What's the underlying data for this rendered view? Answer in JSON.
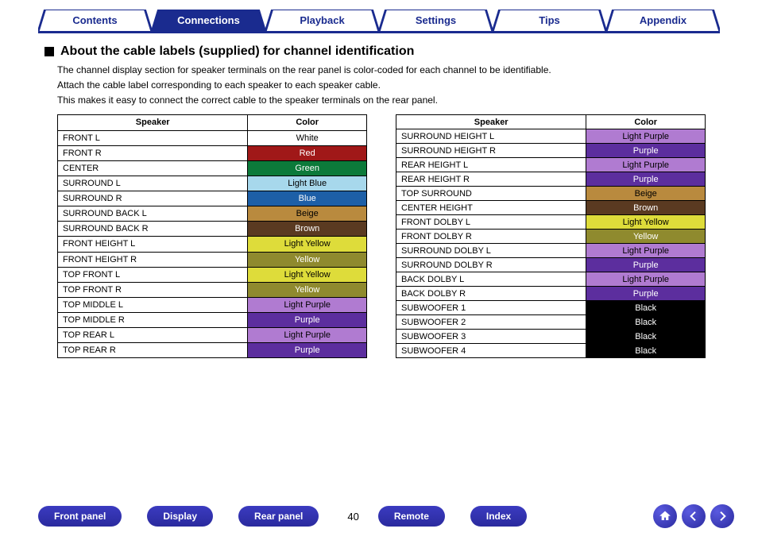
{
  "tabs": [
    {
      "label": "Contents",
      "active": false
    },
    {
      "label": "Connections",
      "active": true
    },
    {
      "label": "Playback",
      "active": false
    },
    {
      "label": "Settings",
      "active": false
    },
    {
      "label": "Tips",
      "active": false
    },
    {
      "label": "Appendix",
      "active": false
    }
  ],
  "section_title": "About the cable labels (supplied) for channel identification",
  "body_lines": [
    "The channel display section for speaker terminals on the rear panel is color-coded for each channel to be identifiable.",
    "Attach the cable label corresponding to each speaker to each speaker cable.",
    "This makes it easy to connect the correct cable to the speaker terminals on the rear panel."
  ],
  "table_headers": {
    "speaker": "Speaker",
    "color": "Color"
  },
  "left_table": [
    {
      "speaker": "FRONT L",
      "color": "White",
      "bg": "#ffffff",
      "fg": "#000000"
    },
    {
      "speaker": "FRONT R",
      "color": "Red",
      "bg": "#a01818",
      "fg": "#ffffff"
    },
    {
      "speaker": "CENTER",
      "color": "Green",
      "bg": "#0c7a3a",
      "fg": "#ffffff"
    },
    {
      "speaker": "SURROUND L",
      "color": "Light Blue",
      "bg": "#a7d8ec",
      "fg": "#000000"
    },
    {
      "speaker": "SURROUND R",
      "color": "Blue",
      "bg": "#1d5fa7",
      "fg": "#ffffff"
    },
    {
      "speaker": "SURROUND BACK L",
      "color": "Beige",
      "bg": "#b98a3e",
      "fg": "#000000"
    },
    {
      "speaker": "SURROUND BACK R",
      "color": "Brown",
      "bg": "#5a3a21",
      "fg": "#ffffff"
    },
    {
      "speaker": "FRONT HEIGHT L",
      "color": "Light Yellow",
      "bg": "#dedc3a",
      "fg": "#000000"
    },
    {
      "speaker": "FRONT HEIGHT R",
      "color": "Yellow",
      "bg": "#8f8a2e",
      "fg": "#ffffff"
    },
    {
      "speaker": "TOP FRONT L",
      "color": "Light Yellow",
      "bg": "#dedc3a",
      "fg": "#000000"
    },
    {
      "speaker": "TOP FRONT R",
      "color": "Yellow",
      "bg": "#8f8a2e",
      "fg": "#ffffff"
    },
    {
      "speaker": "TOP MIDDLE L",
      "color": "Light Purple",
      "bg": "#b07bd1",
      "fg": "#000000"
    },
    {
      "speaker": "TOP MIDDLE R",
      "color": "Purple",
      "bg": "#5c2e9e",
      "fg": "#ffffff"
    },
    {
      "speaker": "TOP REAR L",
      "color": "Light Purple",
      "bg": "#b07bd1",
      "fg": "#000000"
    },
    {
      "speaker": "TOP REAR R",
      "color": "Purple",
      "bg": "#5c2e9e",
      "fg": "#ffffff"
    }
  ],
  "right_table": [
    {
      "speaker": "SURROUND HEIGHT L",
      "color": "Light Purple",
      "bg": "#b07bd1",
      "fg": "#000000"
    },
    {
      "speaker": "SURROUND HEIGHT R",
      "color": "Purple",
      "bg": "#5c2e9e",
      "fg": "#ffffff"
    },
    {
      "speaker": "REAR HEIGHT L",
      "color": "Light Purple",
      "bg": "#b07bd1",
      "fg": "#000000"
    },
    {
      "speaker": "REAR HEIGHT R",
      "color": "Purple",
      "bg": "#5c2e9e",
      "fg": "#ffffff"
    },
    {
      "speaker": "TOP SURROUND",
      "color": "Beige",
      "bg": "#b98a3e",
      "fg": "#000000"
    },
    {
      "speaker": "CENTER HEIGHT",
      "color": "Brown",
      "bg": "#5a3a21",
      "fg": "#ffffff"
    },
    {
      "speaker": "FRONT DOLBY L",
      "color": "Light Yellow",
      "bg": "#dedc3a",
      "fg": "#000000"
    },
    {
      "speaker": "FRONT DOLBY R",
      "color": "Yellow",
      "bg": "#8f8a2e",
      "fg": "#ffffff"
    },
    {
      "speaker": "SURROUND DOLBY L",
      "color": "Light Purple",
      "bg": "#b07bd1",
      "fg": "#000000"
    },
    {
      "speaker": "SURROUND DOLBY R",
      "color": "Purple",
      "bg": "#5c2e9e",
      "fg": "#ffffff"
    },
    {
      "speaker": "BACK DOLBY L",
      "color": "Light Purple",
      "bg": "#b07bd1",
      "fg": "#000000"
    },
    {
      "speaker": "BACK DOLBY R",
      "color": "Purple",
      "bg": "#5c2e9e",
      "fg": "#ffffff"
    },
    {
      "speaker": "SUBWOOFER 1",
      "color": "Black",
      "bg": "#000000",
      "fg": "#ffffff"
    },
    {
      "speaker": "SUBWOOFER 2",
      "color": "Black",
      "bg": "#000000",
      "fg": "#ffffff"
    },
    {
      "speaker": "SUBWOOFER 3",
      "color": "Black",
      "bg": "#000000",
      "fg": "#ffffff"
    },
    {
      "speaker": "SUBWOOFER 4",
      "color": "Black",
      "bg": "#000000",
      "fg": "#ffffff"
    }
  ],
  "bottom_buttons": [
    "Front panel",
    "Display",
    "Rear panel"
  ],
  "page_number": "40",
  "bottom_buttons_right": [
    "Remote",
    "Index"
  ],
  "nav_icons": [
    "home",
    "prev",
    "next"
  ],
  "colors": {
    "brand": "#1a2b8f",
    "tab_active_bg": "#1a2b8f",
    "pill_bg": "#2f2fb0"
  }
}
